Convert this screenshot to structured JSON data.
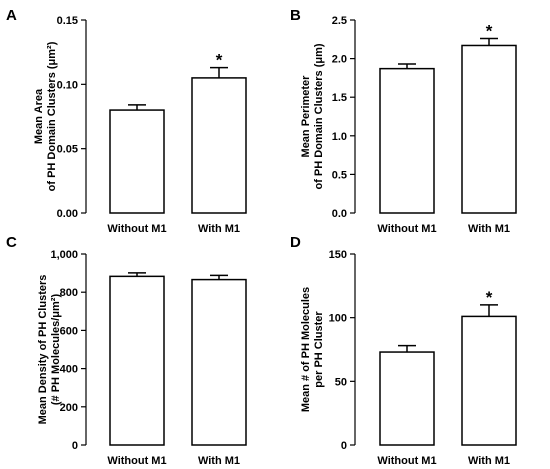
{
  "chart_data": [
    {
      "panel": "A",
      "type": "bar",
      "categories": [
        "Without M1",
        "With M1"
      ],
      "values": [
        0.08,
        0.105
      ],
      "errors": [
        0.004,
        0.008
      ],
      "significance": [
        "",
        "*"
      ],
      "ylabel_lines": [
        "Mean Area",
        "of PH Domain Clusters (μm²)"
      ],
      "ylim": [
        0,
        0.15
      ],
      "yticks": [
        0.0,
        0.05,
        0.1,
        0.15
      ],
      "ytick_labels": [
        "0.00",
        "0.05",
        "0.10",
        "0.15"
      ]
    },
    {
      "panel": "B",
      "type": "bar",
      "categories": [
        "Without M1",
        "With M1"
      ],
      "values": [
        1.87,
        2.17
      ],
      "errors": [
        0.06,
        0.09
      ],
      "significance": [
        "",
        "*"
      ],
      "ylabel_lines": [
        "Mean Perimeter",
        "of PH Domain Clusters (μm)"
      ],
      "ylim": [
        0,
        2.5
      ],
      "yticks": [
        0.0,
        0.5,
        1.0,
        1.5,
        2.0,
        2.5
      ],
      "ytick_labels": [
        "0.0",
        "0.5",
        "1.0",
        "1.5",
        "2.0",
        "2.5"
      ]
    },
    {
      "panel": "C",
      "type": "bar",
      "categories": [
        "Without M1",
        "With M1"
      ],
      "values": [
        883,
        866
      ],
      "errors": [
        18,
        22
      ],
      "significance": [
        "",
        ""
      ],
      "ylabel_lines": [
        "Mean Density of PH Clusters",
        "(# PH Molecules/μm²)"
      ],
      "ylim": [
        0,
        1000
      ],
      "yticks": [
        0,
        200,
        400,
        600,
        800,
        1000
      ],
      "ytick_labels": [
        "0",
        "200",
        "400",
        "600",
        "800",
        "1,000"
      ]
    },
    {
      "panel": "D",
      "type": "bar",
      "categories": [
        "Without M1",
        "With M1"
      ],
      "values": [
        73,
        101
      ],
      "errors": [
        5,
        9
      ],
      "significance": [
        "",
        "*"
      ],
      "ylabel_lines": [
        "Mean # of PH Molecules",
        "per PH Cluster"
      ],
      "ylim": [
        0,
        150
      ],
      "yticks": [
        0,
        50,
        100,
        150
      ],
      "ytick_labels": [
        "0",
        "50",
        "100",
        "150"
      ]
    }
  ]
}
